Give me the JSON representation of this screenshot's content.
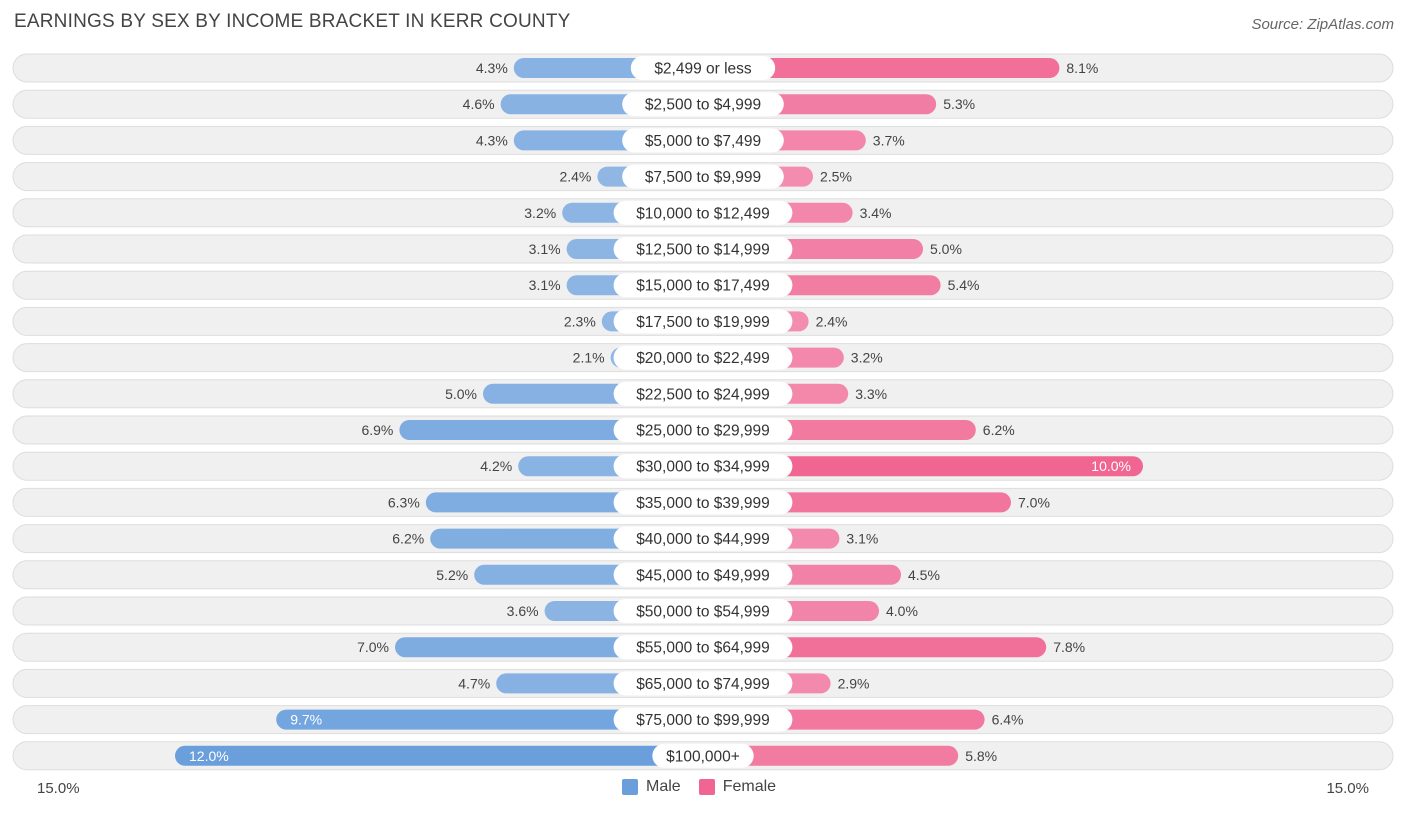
{
  "title": "EARNINGS BY SEX BY INCOME BRACKET IN KERR COUNTY",
  "source": "Source: ZipAtlas.com",
  "legend": {
    "male": "Male",
    "female": "Female"
  },
  "axis": {
    "left_label": "15.0%",
    "right_label": "15.0%"
  },
  "colors": {
    "male_light": "#a9c7ea",
    "male_dark": "#6a9fdc",
    "female_light": "#f6aac4",
    "female_dark": "#f06592",
    "row_bg": "#f0f0f0",
    "row_border": "#dddddd"
  },
  "chart_data": {
    "type": "bar",
    "orientation": "horizontal-diverging",
    "max": 15.0,
    "categories": [
      "$2,499 or less",
      "$2,500 to $4,999",
      "$5,000 to $7,499",
      "$7,500 to $9,999",
      "$10,000 to $12,499",
      "$12,500 to $14,999",
      "$15,000 to $17,499",
      "$17,500 to $19,999",
      "$20,000 to $22,499",
      "$22,500 to $24,999",
      "$25,000 to $29,999",
      "$30,000 to $34,999",
      "$35,000 to $39,999",
      "$40,000 to $44,999",
      "$45,000 to $49,999",
      "$50,000 to $54,999",
      "$55,000 to $64,999",
      "$65,000 to $74,999",
      "$75,000 to $99,999",
      "$100,000+"
    ],
    "series": [
      {
        "name": "Male",
        "values": [
          4.3,
          4.6,
          4.3,
          2.4,
          3.2,
          3.1,
          3.1,
          2.3,
          2.1,
          5.0,
          6.9,
          4.2,
          6.3,
          6.2,
          5.2,
          3.6,
          7.0,
          4.7,
          9.7,
          12.0
        ]
      },
      {
        "name": "Female",
        "values": [
          8.1,
          5.3,
          3.7,
          2.5,
          3.4,
          5.0,
          5.4,
          2.4,
          3.2,
          3.3,
          6.2,
          10.0,
          7.0,
          3.1,
          4.5,
          4.0,
          7.8,
          2.9,
          6.4,
          5.8
        ]
      }
    ],
    "labels": {
      "male": [
        "4.3%",
        "4.6%",
        "4.3%",
        "2.4%",
        "3.2%",
        "3.1%",
        "3.1%",
        "2.3%",
        "2.1%",
        "5.0%",
        "6.9%",
        "4.2%",
        "6.3%",
        "6.2%",
        "5.2%",
        "3.6%",
        "7.0%",
        "4.7%",
        "9.7%",
        "12.0%"
      ],
      "female": [
        "8.1%",
        "5.3%",
        "3.7%",
        "2.5%",
        "3.4%",
        "5.0%",
        "5.4%",
        "2.4%",
        "3.2%",
        "3.3%",
        "6.2%",
        "10.0%",
        "7.0%",
        "3.1%",
        "4.5%",
        "4.0%",
        "7.8%",
        "2.9%",
        "6.4%",
        "5.8%"
      ]
    }
  }
}
